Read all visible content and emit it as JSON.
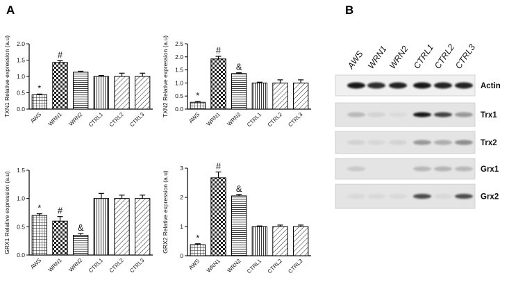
{
  "panel_letters": {
    "a": "A",
    "b": "B"
  },
  "colors": {
    "axis": "#000000",
    "hatch": "#222222",
    "bar_fill": "#ffffff",
    "blot_bg": "#e4e4e4",
    "band_dark": "#111111"
  },
  "chart_data": [
    {
      "type": "bar",
      "categories": [
        "AWS",
        "WRN1",
        "WRN2",
        "CTRL1",
        "CTRL2",
        "CTRL3"
      ],
      "values": [
        0.44,
        1.43,
        1.13,
        1.0,
        1.0,
        1.0
      ],
      "errors": [
        0.02,
        0.05,
        0.03,
        0.03,
        0.1,
        0.1
      ],
      "patterns": [
        "grid",
        "check",
        "hlines",
        "vlines",
        "diag",
        "diag"
      ],
      "annotations": [
        "*",
        "#",
        "",
        "",
        "",
        ""
      ],
      "ylabel": "TXN1 Relative expression (a.u)",
      "ylim": [
        0,
        2.0
      ],
      "yticks": [
        "0.0",
        "0.5",
        "1.0",
        "1.5",
        "2.0"
      ]
    },
    {
      "type": "bar",
      "categories": [
        "AWS",
        "WRN1",
        "WRN2",
        "CTRL1",
        "CTRL2",
        "CTRL3"
      ],
      "values": [
        0.26,
        1.92,
        1.36,
        1.0,
        1.0,
        1.0
      ],
      "errors": [
        0.03,
        0.1,
        0.03,
        0.03,
        0.12,
        0.12
      ],
      "patterns": [
        "grid",
        "check",
        "hlines",
        "vlines",
        "diag",
        "diag"
      ],
      "annotations": [
        "*",
        "#",
        "&",
        "",
        "",
        ""
      ],
      "ylabel": "TXN2 Relative expression (a.u)",
      "ylim": [
        0,
        2.5
      ],
      "yticks": [
        "0.0",
        "0.5",
        "1.0",
        "1.5",
        "2.0",
        "2.5"
      ]
    },
    {
      "type": "bar",
      "categories": [
        "AWS",
        "WRN1",
        "WRN2",
        "CTRL1",
        "CTRL2",
        "CTRL3"
      ],
      "values": [
        0.7,
        0.6,
        0.35,
        1.0,
        1.0,
        1.0
      ],
      "errors": [
        0.03,
        0.08,
        0.03,
        0.09,
        0.06,
        0.06
      ],
      "patterns": [
        "grid",
        "check",
        "hlines",
        "vlines",
        "diag",
        "diag"
      ],
      "annotations": [
        "*",
        "#",
        "&",
        "",
        "",
        ""
      ],
      "ylabel": "GRX1 Relative expression (a.u)",
      "ylim": [
        0,
        1.5
      ],
      "yticks": [
        "0.0",
        "0.5",
        "1.0",
        "1.5"
      ]
    },
    {
      "type": "bar",
      "categories": [
        "AWS",
        "WRN1",
        "WRN2",
        "CTRL1",
        "CTRL2",
        "CTRL3"
      ],
      "values": [
        0.38,
        2.67,
        2.05,
        1.0,
        1.0,
        1.0
      ],
      "errors": [
        0.03,
        0.2,
        0.05,
        0.02,
        0.05,
        0.05
      ],
      "patterns": [
        "grid",
        "check",
        "hlines",
        "vlines",
        "diag",
        "diag"
      ],
      "annotations": [
        "*",
        "#",
        "&",
        "",
        "",
        ""
      ],
      "ylabel": "GRX2 Relative expression (a.u)",
      "ylim": [
        0,
        3
      ],
      "yticks": [
        "0",
        "1",
        "2",
        "3"
      ]
    }
  ],
  "blot": {
    "lanes": [
      "AWS",
      "WRN1",
      "WRN2",
      "CTRL1",
      "CTRL2",
      "CTRL3"
    ],
    "rows": [
      {
        "label": "Actin",
        "intensities": [
          0.95,
          0.85,
          0.9,
          0.95,
          0.9,
          0.9
        ]
      },
      {
        "label": "Trx1",
        "intensities": [
          0.2,
          0.08,
          0.04,
          0.95,
          0.75,
          0.35
        ]
      },
      {
        "label": "Trx2",
        "intensities": [
          0.08,
          0.06,
          0.08,
          0.35,
          0.25,
          0.4
        ]
      },
      {
        "label": "Grx1",
        "intensities": [
          0.12,
          0.0,
          0.0,
          0.2,
          0.22,
          0.2
        ]
      },
      {
        "label": "Grx2",
        "intensities": [
          0.05,
          0.05,
          0.05,
          0.7,
          0.05,
          0.7
        ]
      }
    ]
  }
}
